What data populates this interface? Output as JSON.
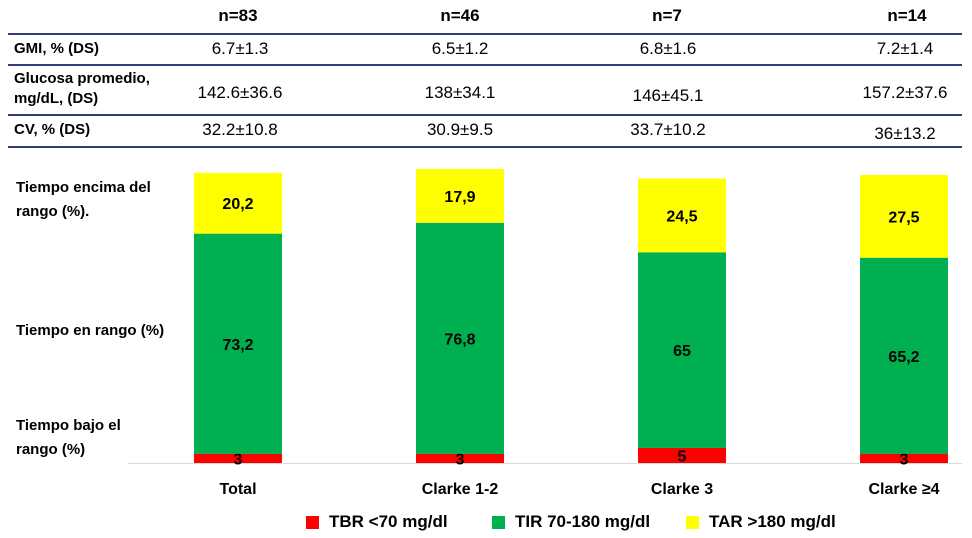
{
  "table": {
    "headers": [
      "n=83",
      "n=46",
      "n=7",
      "n=14"
    ],
    "rows": [
      {
        "label": "GMI, % (DS)",
        "values": [
          "6.7±1.3",
          "6.5±1.2",
          "6.8±1.6",
          "7.2±1.4"
        ]
      },
      {
        "label_lines": [
          "Glucosa promedio,",
          "mg/dL, (DS)"
        ],
        "values": [
          "142.6±36.6",
          "138±34.1",
          "146±45.1",
          "157.2±37.6"
        ]
      },
      {
        "label": "CV, % (DS)",
        "values": [
          "32.2±10.8",
          "30.9±9.5",
          "33.7±10.2",
          "36±13.2"
        ]
      }
    ]
  },
  "y_labels": {
    "above": [
      "Tiempo encima del",
      "rango (%)."
    ],
    "in": "Tiempo en rango (%)",
    "below": [
      "Tiempo bajo el",
      "rango (%)"
    ]
  },
  "chart_data": {
    "type": "bar",
    "stacked": true,
    "categories": [
      "Total",
      "Clarke 1-2",
      "Clarke 3",
      "Clarke ≥4"
    ],
    "series": [
      {
        "name": "TBR <70 mg/dl",
        "color": "#ff0000",
        "values": [
          3,
          3,
          5,
          3
        ],
        "labels": [
          "3",
          "3",
          "5",
          "3"
        ]
      },
      {
        "name": "TIR 70-180 mg/dl",
        "color": "#00b050",
        "values": [
          73.2,
          76.8,
          65,
          65.2
        ],
        "labels": [
          "73,2",
          "76,8",
          "65",
          "65,2"
        ]
      },
      {
        "name": "TAR >180 mg/dl",
        "color": "#ffff00",
        "values": [
          20.2,
          17.9,
          24.5,
          27.5
        ],
        "labels": [
          "20,2",
          "17,9",
          "24,5",
          "27,5"
        ]
      }
    ],
    "ylim": [
      0,
      100
    ],
    "grid": false,
    "legend_position": "bottom"
  }
}
